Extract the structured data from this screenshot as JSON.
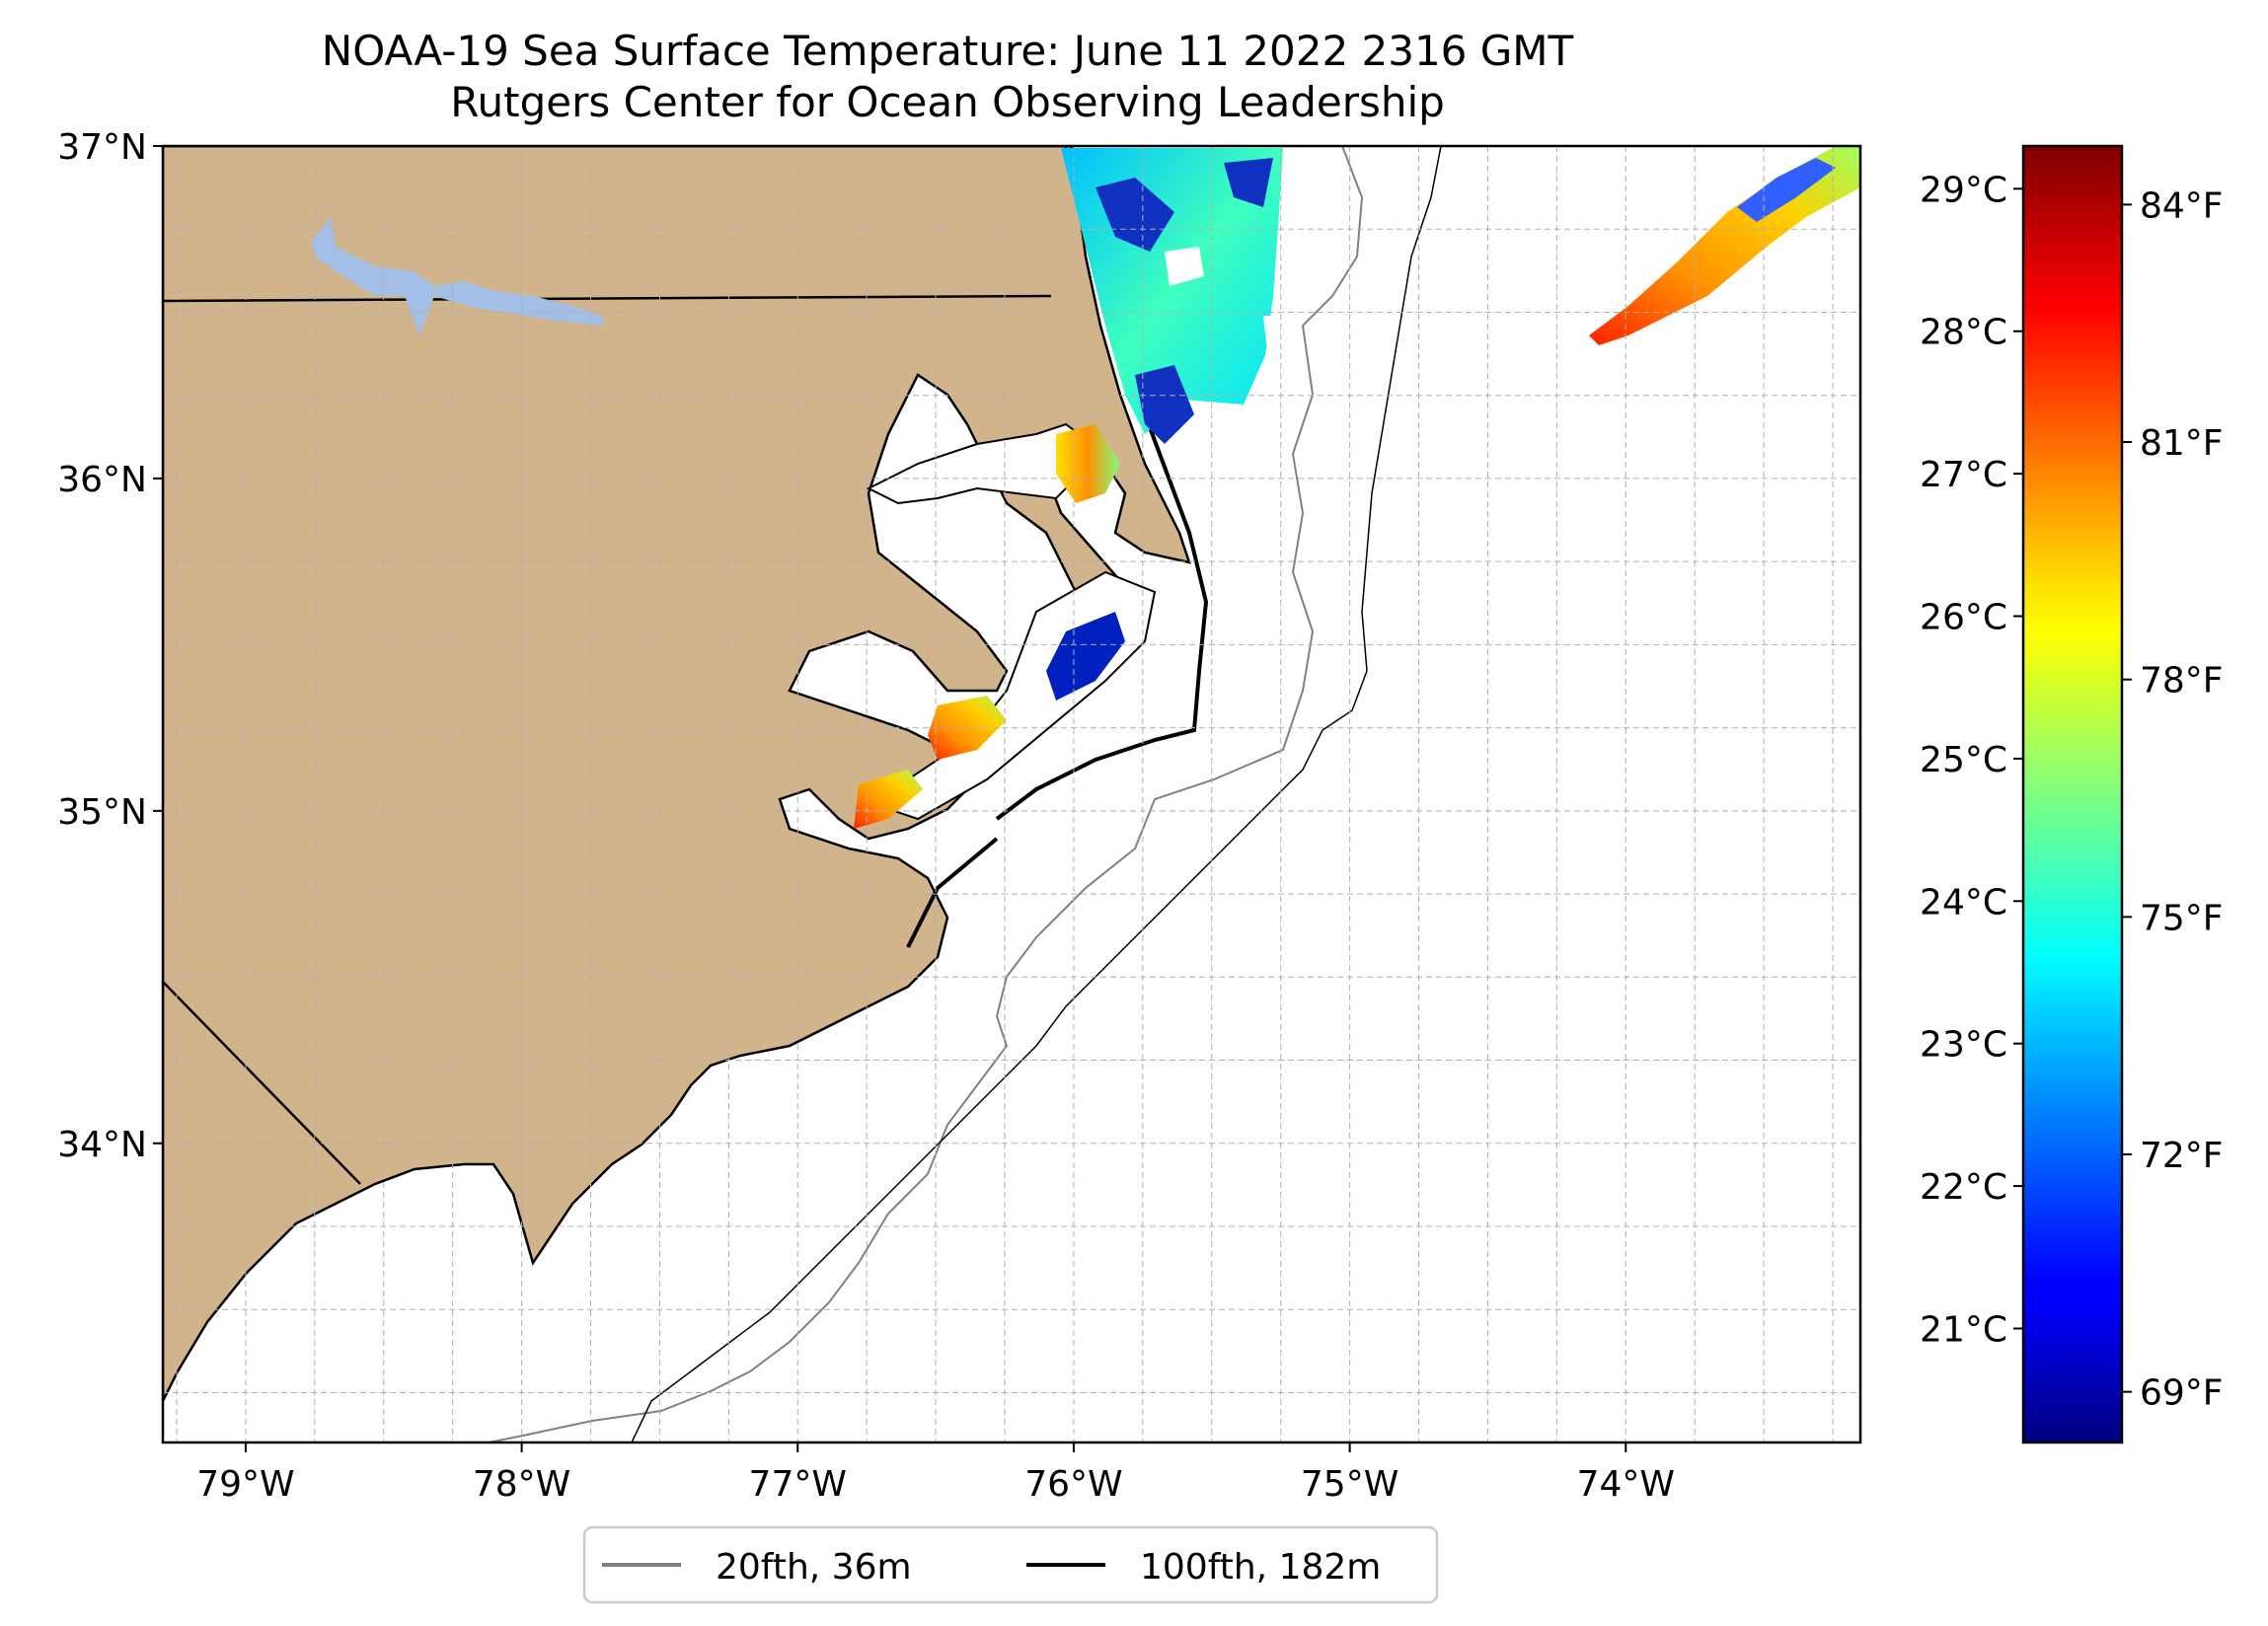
{
  "title": {
    "line1": "NOAA-19 Sea Surface Temperature: June 11 2022 2316 GMT",
    "line2": "Rutgers Center for Ocean Observing Leadership"
  },
  "map": {
    "lat_range": [
      33.1,
      37.0
    ],
    "lon_range": [
      -79.3,
      -73.15
    ],
    "lat_ticks": [
      {
        "value": 37,
        "label": "37°N"
      },
      {
        "value": 36,
        "label": "36°N"
      },
      {
        "value": 35,
        "label": "35°N"
      },
      {
        "value": 34,
        "label": "34°N"
      }
    ],
    "lon_ticks": [
      {
        "value": -79,
        "label": "79°W"
      },
      {
        "value": -78,
        "label": "78°W"
      },
      {
        "value": -77,
        "label": "77°W"
      },
      {
        "value": -76,
        "label": "76°W"
      },
      {
        "value": -75,
        "label": "75°W"
      },
      {
        "value": -74,
        "label": "74°W"
      }
    ],
    "land_color": "#d2b48c",
    "lake_color": "#a3bfe5",
    "isobath_20_color": "#808080",
    "isobath_100_color": "#000000"
  },
  "legend": {
    "items": [
      {
        "label": "20fth, 36m",
        "color": "#808080"
      },
      {
        "label": "100fth, 182m",
        "color": "#000000"
      }
    ]
  },
  "colorbar": {
    "colormap": "jet",
    "celsius_labels": [
      "29°C",
      "28°C",
      "27°C",
      "26°C",
      "25°C",
      "24°C",
      "23°C",
      "22°C",
      "21°C"
    ],
    "fahrenheit_labels": [
      "84°F",
      "81°F",
      "78°F",
      "75°F",
      "72°F",
      "69°F"
    ]
  }
}
